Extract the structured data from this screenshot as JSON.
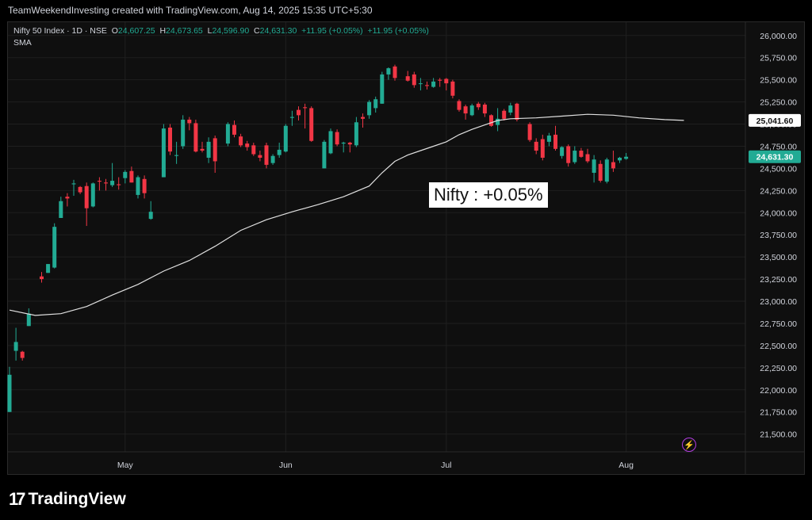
{
  "credit": "TeamWeekendInvesting created with TradingView.com, Aug 14, 2025 15:35 UTC+5:30",
  "legend": {
    "symbol": "Nifty 50 Index · 1D · NSE",
    "o_label": "O",
    "o_value": "24,607.25",
    "h_label": "H",
    "h_value": "24,673.65",
    "l_label": "L",
    "l_value": "24,596.90",
    "c_label": "C",
    "c_value": "24,631.30",
    "change1": "+11.95 (+0.05%)",
    "change2": "+11.95 (+0.05%)",
    "indicator": "SMA"
  },
  "annotation": "Nifty : +0.05%",
  "brand": {
    "mark": "17",
    "name": "TradingView"
  },
  "icons": {
    "flash": "lightning-icon"
  },
  "colors": {
    "up": "#22ab94",
    "down": "#f23645",
    "sma": "#e0e0e0",
    "bg": "#0f0f0f",
    "grid": "#1f1f1f",
    "price_tag": "#22ab94",
    "sma_tag": "#ffffff"
  },
  "chart_data": {
    "type": "candlestick",
    "title": "",
    "symbol": "Nifty 50 Index",
    "interval": "1D",
    "exchange": "NSE",
    "ylim": [
      21300,
      26150
    ],
    "yticks": [
      21500,
      21750,
      22000,
      22250,
      22500,
      22750,
      23000,
      23250,
      23500,
      23750,
      24000,
      24250,
      24500,
      24750,
      25000,
      25250,
      25500,
      25750,
      26000
    ],
    "ytick_labels": [
      "21,500.00",
      "21,750.00",
      "22,000.00",
      "22,250.00",
      "22,500.00",
      "22,750.00",
      "23,000.00",
      "23,250.00",
      "23,500.00",
      "23,750.00",
      "24,000.00",
      "24,250.00",
      "24,500.00",
      "24,750.00",
      "25,000.00",
      "25,250.00",
      "25,500.00",
      "25,750.00",
      "26,000.00"
    ],
    "xticks": [
      {
        "label": "May",
        "index": 18
      },
      {
        "label": "Jun",
        "index": 43
      },
      {
        "label": "Jul",
        "index": 68
      },
      {
        "label": "Aug",
        "index": 96
      }
    ],
    "grid": true,
    "last_price": {
      "value": 24631.3,
      "label": "24,631.30"
    },
    "sma_last": {
      "value": 25041.6,
      "label": "25,041.60"
    },
    "candles": [
      {
        "o": 21750,
        "h": 22260,
        "l": 21750,
        "c": 22170
      },
      {
        "o": 22440,
        "h": 22700,
        "l": 22330,
        "c": 22540
      },
      {
        "o": 22430,
        "h": 22440,
        "l": 22330,
        "c": 22360
      },
      {
        "o": 22720,
        "h": 22920,
        "l": 22720,
        "c": 22860
      },
      {},
      {
        "o": 23280,
        "h": 23330,
        "l": 23210,
        "c": 23250
      },
      {
        "o": 23320,
        "h": 23420,
        "l": 23320,
        "c": 23420
      },
      {
        "o": 23380,
        "h": 23880,
        "l": 23370,
        "c": 23840
      },
      {
        "o": 23940,
        "h": 24180,
        "l": 23940,
        "c": 24130
      },
      {
        "o": 24180,
        "h": 24220,
        "l": 24070,
        "c": 24160
      },
      {
        "o": 24320,
        "h": 24370,
        "l": 24190,
        "c": 24330
      },
      {
        "o": 24290,
        "h": 24300,
        "l": 24210,
        "c": 24230
      },
      {
        "o": 24300,
        "h": 24340,
        "l": 23850,
        "c": 24050
      },
      {
        "o": 24070,
        "h": 24340,
        "l": 24060,
        "c": 24330
      },
      {
        "o": 24360,
        "h": 24400,
        "l": 24250,
        "c": 24350
      },
      {
        "o": 24340,
        "h": 24380,
        "l": 24250,
        "c": 24330
      },
      {
        "o": 24310,
        "h": 24560,
        "l": 24290,
        "c": 24360
      },
      {
        "o": 24320,
        "h": 24400,
        "l": 24260,
        "c": 24310
      },
      {
        "o": 24390,
        "h": 24480,
        "l": 24330,
        "c": 24460
      },
      {
        "o": 24470,
        "h": 24520,
        "l": 24340,
        "c": 24340
      },
      {
        "o": 24200,
        "h": 24420,
        "l": 24160,
        "c": 24400
      },
      {
        "o": 24380,
        "h": 24420,
        "l": 24160,
        "c": 24220
      },
      {
        "o": 23930,
        "h": 24130,
        "l": 23920,
        "c": 24010
      },
      {},
      {
        "o": 24400,
        "h": 25000,
        "l": 24400,
        "c": 24950
      },
      {
        "o": 24960,
        "h": 25000,
        "l": 24650,
        "c": 24690
      },
      {
        "o": 24640,
        "h": 24800,
        "l": 24550,
        "c": 24650
      },
      {
        "o": 24750,
        "h": 25100,
        "l": 24720,
        "c": 25050
      },
      {
        "o": 25050,
        "h": 25080,
        "l": 24930,
        "c": 25010
      },
      {
        "o": 25010,
        "h": 25050,
        "l": 24680,
        "c": 24690
      },
      {
        "o": 24720,
        "h": 24800,
        "l": 24680,
        "c": 24700
      },
      {
        "o": 24620,
        "h": 24850,
        "l": 24560,
        "c": 24800
      },
      {
        "o": 24840,
        "h": 24870,
        "l": 24450,
        "c": 24580
      },
      {},
      {
        "o": 24780,
        "h": 25020,
        "l": 24750,
        "c": 25000
      },
      {
        "o": 24990,
        "h": 25040,
        "l": 24850,
        "c": 24880
      },
      {
        "o": 24860,
        "h": 24890,
        "l": 24740,
        "c": 24760
      },
      {
        "o": 24780,
        "h": 24810,
        "l": 24700,
        "c": 24740
      },
      {
        "o": 24760,
        "h": 24790,
        "l": 24640,
        "c": 24660
      },
      {
        "o": 24650,
        "h": 24700,
        "l": 24580,
        "c": 24620
      },
      {
        "o": 24760,
        "h": 24790,
        "l": 24500,
        "c": 24540
      },
      {
        "o": 24560,
        "h": 24660,
        "l": 24540,
        "c": 24640
      },
      {
        "o": 24650,
        "h": 24790,
        "l": 24620,
        "c": 24710
      },
      {
        "o": 24690,
        "h": 25000,
        "l": 24680,
        "c": 24980
      },
      {
        "o": 25070,
        "h": 25150,
        "l": 24980,
        "c": 25080
      },
      {
        "o": 25160,
        "h": 25200,
        "l": 25040,
        "c": 25100
      },
      {
        "o": 25190,
        "h": 25230,
        "l": 24950,
        "c": 25180
      },
      {
        "o": 25180,
        "h": 25200,
        "l": 24800,
        "c": 24810
      },
      {},
      {
        "o": 24500,
        "h": 24820,
        "l": 24500,
        "c": 24800
      },
      {
        "o": 24670,
        "h": 24950,
        "l": 24660,
        "c": 24920
      },
      {
        "o": 24910,
        "h": 24940,
        "l": 24750,
        "c": 24770
      },
      {
        "o": 24780,
        "h": 24800,
        "l": 24680,
        "c": 24790
      },
      {
        "o": 24790,
        "h": 24800,
        "l": 24680,
        "c": 24770
      },
      {
        "o": 24760,
        "h": 25080,
        "l": 24740,
        "c": 25020
      },
      {
        "o": 25080,
        "h": 25120,
        "l": 24960,
        "c": 25060
      },
      {
        "o": 25100,
        "h": 25270,
        "l": 25060,
        "c": 25250
      },
      {
        "o": 25180,
        "h": 25310,
        "l": 25130,
        "c": 25280
      },
      {
        "o": 25230,
        "h": 25590,
        "l": 25230,
        "c": 25560
      },
      {
        "o": 25560,
        "h": 25640,
        "l": 25500,
        "c": 25630
      },
      {
        "o": 25650,
        "h": 25670,
        "l": 25490,
        "c": 25520
      },
      {},
      {
        "o": 25540,
        "h": 25600,
        "l": 25480,
        "c": 25490
      },
      {
        "o": 25560,
        "h": 25590,
        "l": 25410,
        "c": 25440
      },
      {
        "o": 25460,
        "h": 25520,
        "l": 25380,
        "c": 25460
      },
      {
        "o": 25440,
        "h": 25480,
        "l": 25390,
        "c": 25430
      },
      {
        "o": 25420,
        "h": 25520,
        "l": 25410,
        "c": 25480
      },
      {
        "o": 25500,
        "h": 25520,
        "l": 25420,
        "c": 25490
      },
      {
        "o": 25510,
        "h": 25520,
        "l": 25380,
        "c": 25460
      },
      {
        "o": 25480,
        "h": 25500,
        "l": 25290,
        "c": 25320
      },
      {
        "o": 25260,
        "h": 25280,
        "l": 25140,
        "c": 25160
      },
      {
        "o": 25200,
        "h": 25220,
        "l": 25050,
        "c": 25120
      },
      {
        "o": 25100,
        "h": 25230,
        "l": 25090,
        "c": 25210
      },
      {
        "o": 25230,
        "h": 25250,
        "l": 25160,
        "c": 25190
      },
      {
        "o": 25220,
        "h": 25240,
        "l": 25080,
        "c": 25120
      },
      {
        "o": 25100,
        "h": 25110,
        "l": 24970,
        "c": 24980
      },
      {
        "o": 24990,
        "h": 25180,
        "l": 24920,
        "c": 25060
      },
      {
        "o": 25150,
        "h": 25170,
        "l": 25040,
        "c": 25060
      },
      {
        "o": 25130,
        "h": 25240,
        "l": 25100,
        "c": 25210
      },
      {
        "o": 25230,
        "h": 25240,
        "l": 25030,
        "c": 25050
      },
      {},
      {
        "o": 25000,
        "h": 25020,
        "l": 24800,
        "c": 24820
      },
      {
        "o": 24800,
        "h": 24840,
        "l": 24660,
        "c": 24700
      },
      {
        "o": 24830,
        "h": 24880,
        "l": 24590,
        "c": 24620
      },
      {
        "o": 24800,
        "h": 24900,
        "l": 24750,
        "c": 24870
      },
      {
        "o": 24880,
        "h": 24980,
        "l": 24700,
        "c": 24720
      },
      {
        "o": 24640,
        "h": 24750,
        "l": 24610,
        "c": 24740
      },
      {
        "o": 24750,
        "h": 24770,
        "l": 24520,
        "c": 24560
      },
      {
        "o": 24570,
        "h": 24750,
        "l": 24550,
        "c": 24700
      },
      {
        "o": 24700,
        "h": 24730,
        "l": 24620,
        "c": 24630
      },
      {
        "o": 24660,
        "h": 24720,
        "l": 24560,
        "c": 24580
      },
      {
        "o": 24450,
        "h": 24650,
        "l": 24340,
        "c": 24600
      },
      {
        "o": 24550,
        "h": 24590,
        "l": 24340,
        "c": 24360
      },
      {
        "o": 24350,
        "h": 24620,
        "l": 24330,
        "c": 24600
      },
      {
        "o": 24570,
        "h": 24700,
        "l": 24460,
        "c": 24500
      },
      {
        "o": 24590,
        "h": 24630,
        "l": 24560,
        "c": 24620
      },
      {
        "o": 24607.25,
        "h": 24673.65,
        "l": 24596.9,
        "c": 24631.3
      }
    ],
    "sma": [
      [
        0,
        22900
      ],
      [
        4,
        22840
      ],
      [
        8,
        22860
      ],
      [
        12,
        22940
      ],
      [
        16,
        23070
      ],
      [
        20,
        23190
      ],
      [
        24,
        23340
      ],
      [
        28,
        23460
      ],
      [
        32,
        23620
      ],
      [
        36,
        23800
      ],
      [
        40,
        23920
      ],
      [
        44,
        24010
      ],
      [
        48,
        24090
      ],
      [
        52,
        24180
      ],
      [
        56,
        24300
      ],
      [
        58,
        24450
      ],
      [
        60,
        24580
      ],
      [
        62,
        24650
      ],
      [
        64,
        24700
      ],
      [
        66,
        24750
      ],
      [
        68,
        24800
      ],
      [
        70,
        24880
      ],
      [
        72,
        24940
      ],
      [
        74,
        24990
      ],
      [
        76,
        25040
      ],
      [
        78,
        25060
      ],
      [
        82,
        25070
      ],
      [
        86,
        25090
      ],
      [
        90,
        25110
      ],
      [
        94,
        25100
      ],
      [
        98,
        25070
      ],
      [
        102,
        25050
      ],
      [
        105,
        25041.6
      ]
    ]
  }
}
